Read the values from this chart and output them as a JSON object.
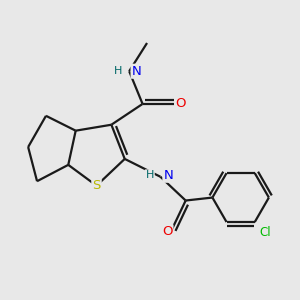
{
  "bg_color": "#e8e8e8",
  "bond_color": "#1a1a1a",
  "bond_lw": 1.6,
  "atom_colors": {
    "N": "#0000ee",
    "O": "#ee0000",
    "S": "#b8b800",
    "Cl": "#00bb00",
    "H": "#006666",
    "C": "#1a1a1a"
  },
  "font_size": 8.5,
  "fig_size": [
    3.0,
    3.0
  ],
  "dpi": 100
}
